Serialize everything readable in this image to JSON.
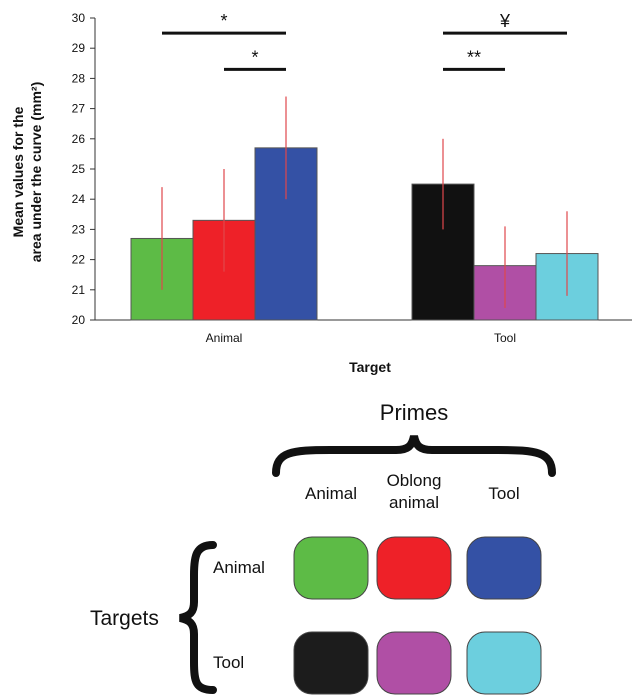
{
  "chart_data": {
    "type": "bar",
    "xlabel": "Target",
    "ylabel_line1": "Mean values for the",
    "ylabel_line2": "area under the curve (mm²)",
    "ylim": [
      20,
      30
    ],
    "yticks": [
      "20",
      "21",
      "22",
      "23",
      "24",
      "25",
      "26",
      "27",
      "28",
      "29",
      "30"
    ],
    "categories": [
      "Animal",
      "Tool"
    ],
    "series": [
      {
        "color": "#5dbb46",
        "values": [
          22.7,
          24.5
        ],
        "error_low": [
          21.0,
          23.0
        ],
        "error_high": [
          24.4,
          26.0
        ],
        "cat_colors": [
          "#5dbb46",
          "#111111"
        ]
      },
      {
        "color": "#ee2128",
        "values": [
          23.3,
          21.8
        ],
        "error_low": [
          21.6,
          20.4
        ],
        "error_high": [
          25.0,
          23.1
        ],
        "cat_colors": [
          "#ee2128",
          "#b04fa5"
        ]
      },
      {
        "color": "#3451a5",
        "values": [
          25.7,
          22.2
        ],
        "error_low": [
          24.0,
          20.8
        ],
        "error_high": [
          27.4,
          23.6
        ],
        "cat_colors": [
          "#3451a5",
          "#6ccfde"
        ]
      }
    ],
    "error_bar_color": "#e0474b",
    "significance": [
      {
        "label": "*",
        "category": 0,
        "from_bar": 0,
        "to_bar": 2,
        "y": 29.5
      },
      {
        "label": "*",
        "category": 0,
        "from_bar": 1,
        "to_bar": 2,
        "y": 28.3
      },
      {
        "label": "¥",
        "category": 1,
        "from_bar": 0,
        "to_bar": 2,
        "y": 29.5
      },
      {
        "label": "**",
        "category": 1,
        "from_bar": 0,
        "to_bar": 1,
        "y": 28.3
      }
    ],
    "grid": false,
    "legend_placement": "bottom"
  },
  "legend": {
    "title": "Primes",
    "columns": [
      "Animal",
      "Oblong\nanimal",
      "Tool"
    ],
    "targets_label": "Targets",
    "rows": [
      {
        "label": "Animal",
        "colors": [
          "#5dbb46",
          "#ee2128",
          "#3451a5"
        ]
      },
      {
        "label": "Tool",
        "colors": [
          "#1c1c1c",
          "#b04fa5",
          "#6ccfde"
        ]
      }
    ]
  }
}
